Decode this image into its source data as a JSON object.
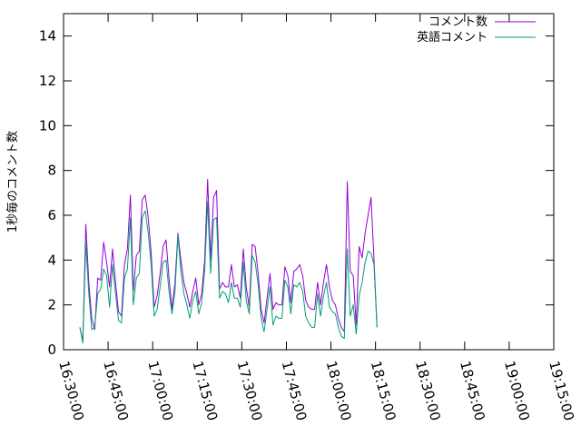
{
  "chart_data": {
    "type": "line",
    "ylabel": "1秒毎のコメント数",
    "xlabel": "",
    "title": "",
    "ylim": [
      0,
      15
    ],
    "xlim": [
      "16:30:00",
      "19:15:00"
    ],
    "x_ticks": [
      "16:30:00",
      "16:45:00",
      "17:00:00",
      "17:15:00",
      "17:30:00",
      "17:45:00",
      "18:00:00",
      "18:15:00",
      "18:30:00",
      "18:45:00",
      "19:00:00",
      "19:15:00"
    ],
    "y_ticks": [
      0,
      2,
      4,
      6,
      8,
      10,
      12,
      14
    ],
    "grid": false,
    "legend_position": "top-right",
    "x_time_start": "16:35:30",
    "x_time_step_seconds": 60,
    "series": [
      {
        "name": "コメント数",
        "color": "#9400d3",
        "values": [
          1.0,
          0.4,
          5.6,
          3.0,
          1.4,
          0.9,
          3.2,
          3.1,
          4.8,
          3.9,
          2.8,
          4.5,
          3.0,
          1.7,
          1.5,
          3.8,
          4.5,
          6.9,
          2.6,
          4.2,
          4.4,
          6.7,
          6.9,
          5.9,
          4.3,
          1.9,
          2.4,
          3.4,
          4.6,
          4.9,
          3.2,
          1.8,
          3.0,
          5.2,
          4.0,
          3.0,
          2.5,
          1.9,
          2.6,
          3.2,
          2.0,
          2.5,
          4.0,
          7.6,
          4.0,
          6.8,
          7.1,
          2.7,
          3.0,
          2.8,
          2.8,
          3.8,
          2.8,
          2.9,
          2.3,
          4.5,
          2.8,
          1.9,
          4.7,
          4.6,
          3.4,
          1.8,
          1.2,
          2.3,
          3.4,
          1.8,
          2.1,
          2.0,
          2.0,
          3.7,
          3.3,
          2.1,
          3.5,
          3.6,
          3.8,
          3.3,
          2.2,
          1.9,
          1.8,
          1.8,
          3.0,
          2.0,
          3.0,
          3.8,
          2.8,
          2.2,
          2.0,
          1.4,
          1.0,
          0.8,
          7.5,
          3.5,
          3.3,
          1.1,
          4.6,
          4.1,
          5.2,
          6.0,
          6.8,
          4.0,
          1.0
        ]
      },
      {
        "name": "英語コメント",
        "color": "#009e73",
        "values": [
          1.0,
          0.3,
          4.8,
          2.5,
          0.9,
          1.0,
          2.5,
          2.7,
          3.6,
          3.3,
          1.9,
          3.8,
          2.5,
          1.3,
          1.2,
          3.2,
          3.6,
          5.9,
          2.0,
          3.2,
          3.4,
          5.9,
          6.2,
          5.2,
          3.8,
          1.5,
          1.8,
          2.8,
          3.9,
          4.0,
          2.6,
          1.6,
          2.6,
          5.1,
          3.5,
          2.5,
          2.0,
          1.4,
          2.2,
          2.6,
          1.6,
          2.1,
          3.5,
          6.6,
          3.4,
          5.8,
          5.9,
          2.3,
          2.6,
          2.5,
          2.1,
          3.0,
          2.3,
          2.3,
          1.9,
          3.9,
          2.2,
          1.6,
          4.2,
          3.9,
          2.9,
          1.4,
          0.8,
          1.8,
          2.8,
          1.1,
          1.5,
          1.4,
          1.4,
          3.1,
          2.8,
          1.6,
          2.9,
          2.8,
          3.0,
          2.6,
          1.5,
          1.2,
          1.0,
          1.0,
          2.5,
          1.5,
          2.4,
          3.0,
          1.9,
          1.7,
          1.6,
          1.0,
          0.6,
          0.5,
          4.5,
          1.5,
          2.0,
          0.7,
          2.4,
          3.0,
          3.9,
          4.4,
          4.3,
          3.8,
          1.0
        ]
      }
    ]
  }
}
